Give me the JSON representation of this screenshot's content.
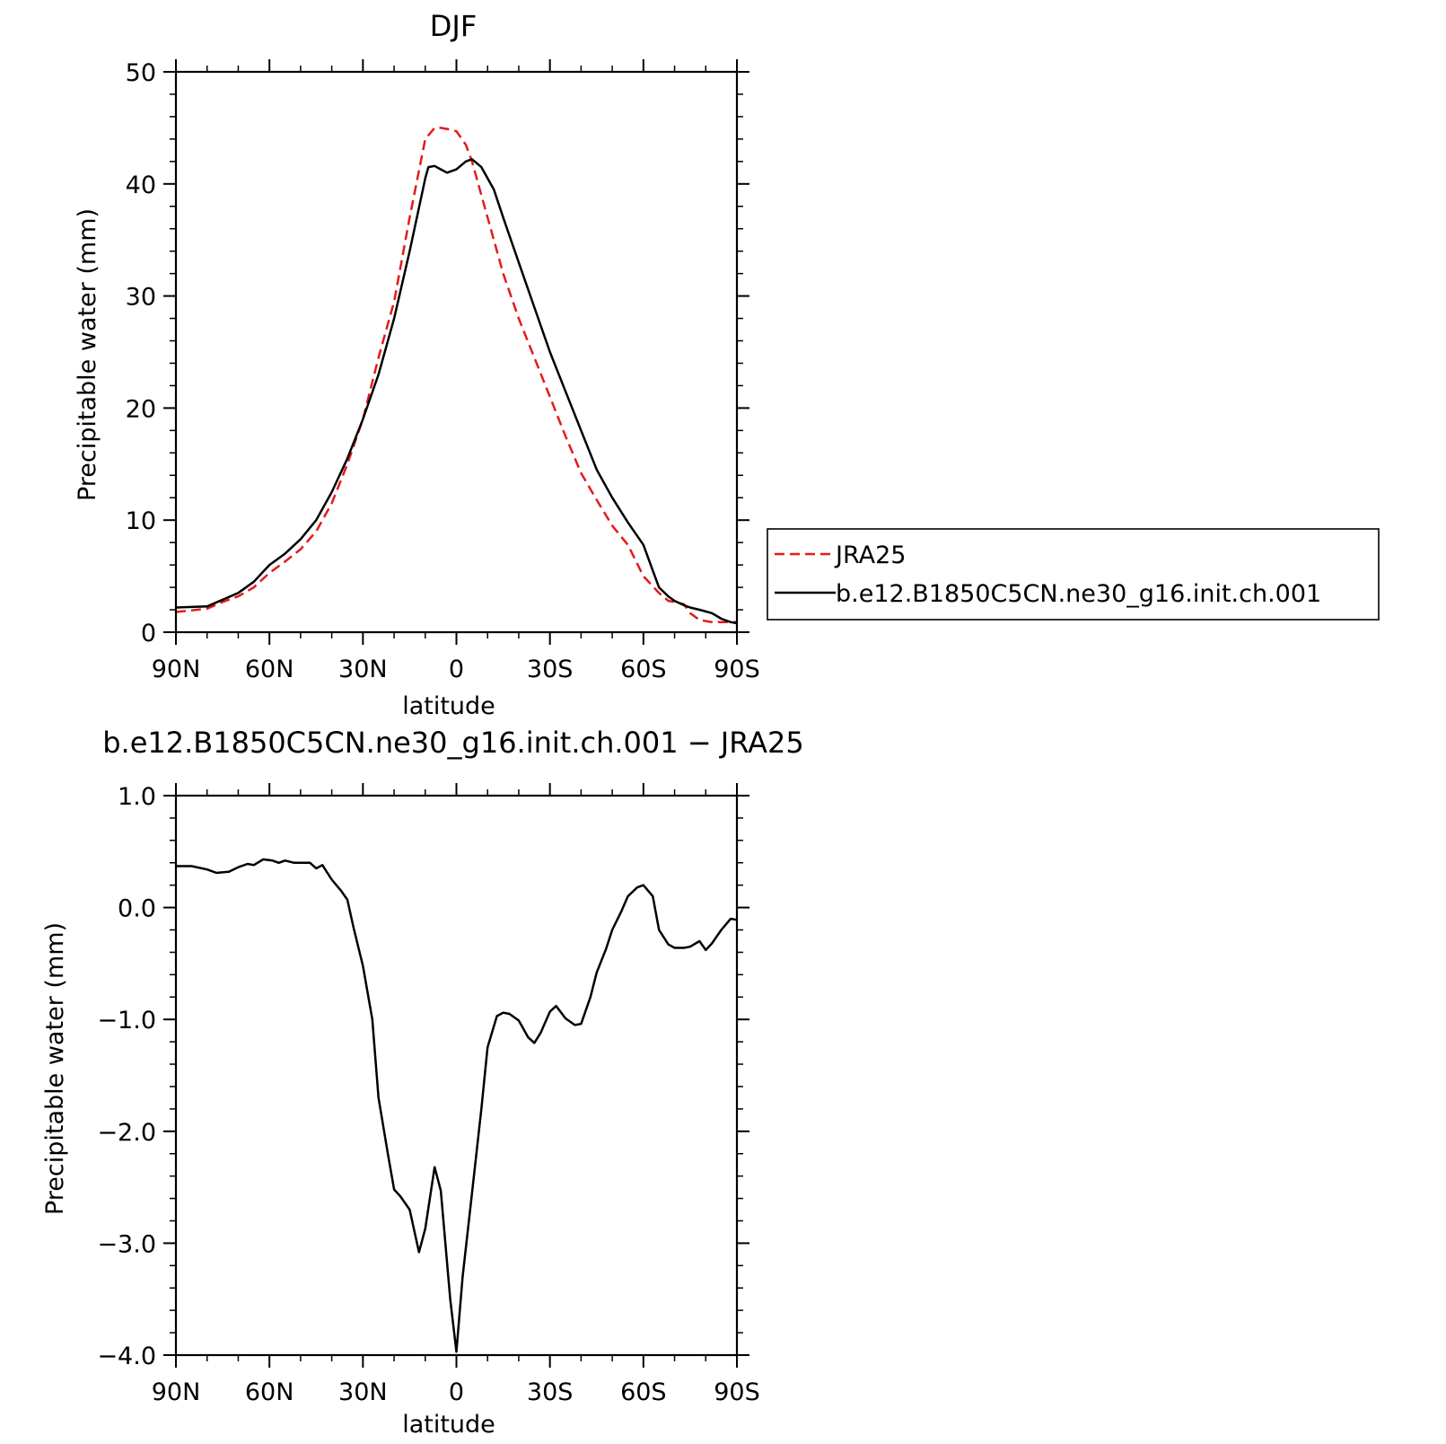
{
  "chart_data": [
    {
      "type": "line",
      "title": "DJF",
      "xlabel": "latitude",
      "ylabel": "Precipitable water (mm)",
      "xlim": [
        90,
        -90
      ],
      "ylim": [
        0,
        50
      ],
      "xticks": [
        {
          "value": 90,
          "label": "90N"
        },
        {
          "value": 60,
          "label": "60N"
        },
        {
          "value": 30,
          "label": "30N"
        },
        {
          "value": 0,
          "label": "0"
        },
        {
          "value": -30,
          "label": "30S"
        },
        {
          "value": -60,
          "label": "60S"
        },
        {
          "value": -90,
          "label": "90S"
        }
      ],
      "yticks": [
        {
          "value": 0,
          "label": "0"
        },
        {
          "value": 10,
          "label": "10"
        },
        {
          "value": 20,
          "label": "20"
        },
        {
          "value": 30,
          "label": "30"
        },
        {
          "value": 40,
          "label": "40"
        },
        {
          "value": 50,
          "label": "50"
        }
      ],
      "legend": {
        "placement": "right",
        "entries": [
          "JRA25",
          "b.e12.B1850C5CN.ne30_g16.init.ch.001"
        ]
      },
      "series": [
        {
          "name": "JRA25",
          "color": "#e41a1c",
          "dash": "dashed",
          "x": [
            90,
            80,
            75,
            70,
            65,
            60,
            55,
            50,
            45,
            40,
            35,
            30,
            25,
            20,
            15,
            10,
            7,
            5,
            3,
            0,
            -3,
            -5,
            -8,
            -12,
            -15,
            -20,
            -25,
            -30,
            -35,
            -40,
            -45,
            -50,
            -55,
            -60,
            -65,
            -68,
            -70,
            -73,
            -75,
            -78,
            -82,
            -85,
            -88,
            -90
          ],
          "y": [
            1.8,
            2.1,
            2.7,
            3.2,
            4.0,
            5.3,
            6.3,
            7.4,
            9.0,
            11.5,
            15.0,
            19.0,
            24.5,
            29.5,
            37.0,
            44.0,
            45.0,
            45.0,
            44.9,
            44.7,
            43.5,
            42.0,
            39.0,
            35.0,
            32.0,
            28.0,
            24.5,
            21.0,
            17.5,
            14.2,
            11.8,
            9.5,
            7.8,
            5.0,
            3.5,
            2.8,
            2.7,
            2.5,
            1.7,
            1.1,
            0.9,
            0.9,
            0.9,
            0.9
          ]
        },
        {
          "name": "b.e12.B1850C5CN.ne30_g16.init.ch.001",
          "color": "#000000",
          "dash": "solid",
          "x": [
            90,
            80,
            75,
            70,
            65,
            60,
            55,
            50,
            45,
            40,
            35,
            30,
            25,
            20,
            15,
            10,
            9,
            7,
            5,
            3,
            0,
            -3,
            -5,
            -8,
            -12,
            -15,
            -20,
            -25,
            -30,
            -35,
            -40,
            -45,
            -50,
            -55,
            -60,
            -63,
            -65,
            -68,
            -70,
            -73,
            -75,
            -78,
            -82,
            -85,
            -88,
            -90
          ],
          "y": [
            2.2,
            2.3,
            2.9,
            3.5,
            4.5,
            6.0,
            7.0,
            8.3,
            10.0,
            12.5,
            15.5,
            19.0,
            23.0,
            28.0,
            34.0,
            40.5,
            41.5,
            41.6,
            41.3,
            41.0,
            41.3,
            42.0,
            42.2,
            41.5,
            39.5,
            37.0,
            33.0,
            29.0,
            25.0,
            21.5,
            18.0,
            14.5,
            12.0,
            9.8,
            7.8,
            5.5,
            4.0,
            3.2,
            2.8,
            2.4,
            2.2,
            2.0,
            1.7,
            1.2,
            0.9,
            0.8
          ]
        }
      ]
    },
    {
      "type": "line",
      "title": "b.e12.B1850C5CN.ne30_g16.init.ch.001 − JRA25",
      "xlabel": "latitude",
      "ylabel": "Precipitable water (mm)",
      "xlim": [
        90,
        -90
      ],
      "ylim": [
        -4.0,
        1.0
      ],
      "xticks": [
        {
          "value": 90,
          "label": "90N"
        },
        {
          "value": 60,
          "label": "60N"
        },
        {
          "value": 30,
          "label": "30N"
        },
        {
          "value": 0,
          "label": "0"
        },
        {
          "value": -30,
          "label": "30S"
        },
        {
          "value": -60,
          "label": "60S"
        },
        {
          "value": -90,
          "label": "90S"
        }
      ],
      "yticks": [
        {
          "value": 1.0,
          "label": "1.0"
        },
        {
          "value": 0.0,
          "label": "0.0"
        },
        {
          "value": -1.0,
          "label": "−1.0"
        },
        {
          "value": -2.0,
          "label": "−2.0"
        },
        {
          "value": -3.0,
          "label": "−3.0"
        },
        {
          "value": -4.0,
          "label": "−4.0"
        }
      ],
      "series": [
        {
          "color": "#000000",
          "dash": "solid",
          "x": [
            90,
            85,
            80,
            77,
            73,
            70,
            67,
            65,
            62,
            59,
            57,
            55,
            52,
            49,
            47,
            45,
            43,
            40,
            37,
            35,
            33,
            30,
            27,
            25,
            22,
            20,
            18,
            15,
            12,
            10,
            7,
            5,
            2,
            0,
            -2,
            -5,
            -8,
            -10,
            -13,
            -15,
            -17,
            -20,
            -23,
            -25,
            -27,
            -30,
            -32,
            -35,
            -38,
            -40,
            -43,
            -45,
            -48,
            -50,
            -53,
            -55,
            -58,
            -60,
            -63,
            -65,
            -68,
            -70,
            -73,
            -75,
            -78,
            -80,
            -82,
            -85,
            -88,
            -90
          ],
          "y": [
            0.37,
            0.37,
            0.34,
            0.31,
            0.32,
            0.36,
            0.39,
            0.38,
            0.43,
            0.42,
            0.4,
            0.42,
            0.4,
            0.4,
            0.4,
            0.35,
            0.38,
            0.25,
            0.15,
            0.07,
            -0.18,
            -0.52,
            -1.0,
            -1.7,
            -2.2,
            -2.52,
            -2.58,
            -2.7,
            -3.08,
            -2.87,
            -2.32,
            -2.53,
            -3.5,
            -3.97,
            -3.3,
            -2.55,
            -1.8,
            -1.25,
            -0.97,
            -0.94,
            -0.95,
            -1.01,
            -1.16,
            -1.21,
            -1.12,
            -0.93,
            -0.88,
            -0.99,
            -1.05,
            -1.04,
            -0.8,
            -0.58,
            -0.37,
            -0.2,
            -0.03,
            0.1,
            0.18,
            0.2,
            0.1,
            -0.2,
            -0.33,
            -0.36,
            -0.36,
            -0.35,
            -0.3,
            -0.38,
            -0.32,
            -0.2,
            -0.1,
            -0.11
          ]
        }
      ]
    }
  ]
}
